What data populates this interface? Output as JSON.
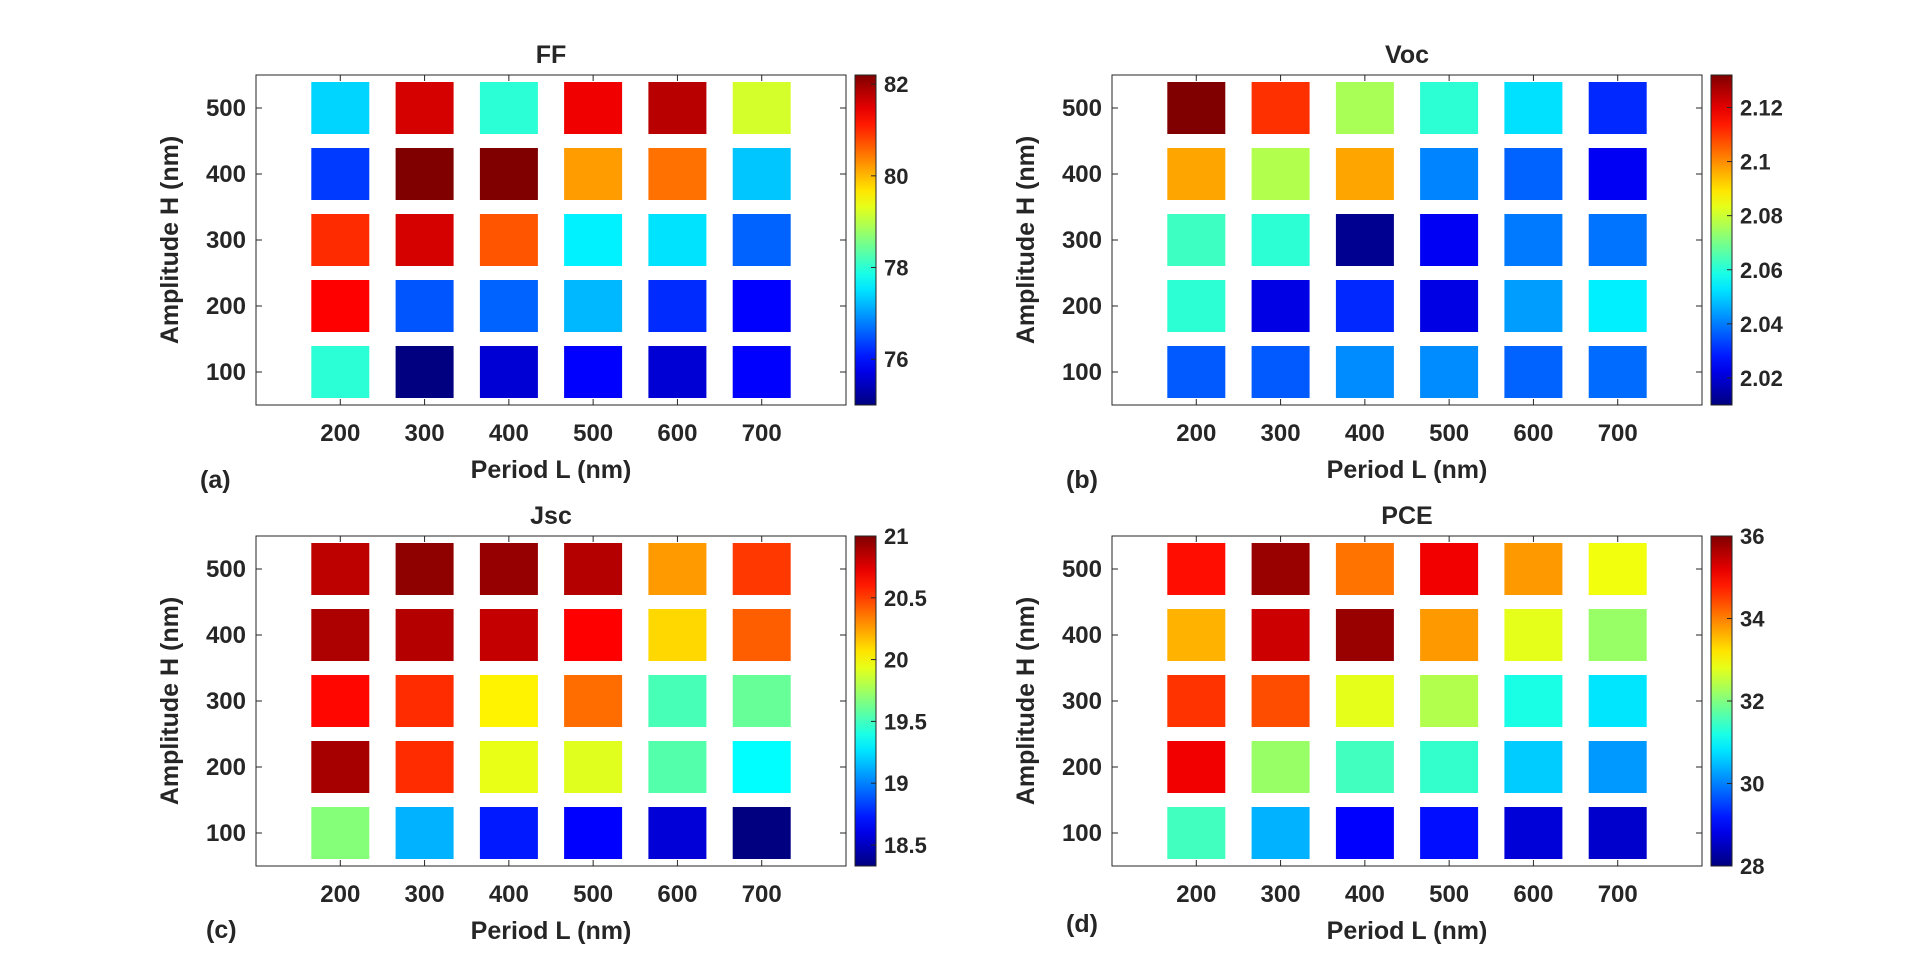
{
  "figure": {
    "background": "#ffffff"
  },
  "chart_data": [
    {
      "type": "heatmap",
      "panel_label": "(a)",
      "title": "FF",
      "xlabel": "Period L (nm)",
      "ylabel": "Amplitude H (nm)",
      "x": [
        200,
        300,
        400,
        500,
        600,
        700
      ],
      "y": [
        100,
        200,
        300,
        400,
        500
      ],
      "xlim": [
        100,
        800
      ],
      "ylim": [
        50,
        550
      ],
      "yticks": [
        100,
        200,
        300,
        400,
        500
      ],
      "clim": [
        75,
        82.2
      ],
      "colorbar_ticks": [
        76,
        78,
        80,
        82
      ],
      "values": [
        [
          78.0,
          75.0,
          75.6,
          75.9,
          75.6,
          75.9
        ],
        [
          81.3,
          76.5,
          76.6,
          77.2,
          76.2,
          75.9
        ],
        [
          81.0,
          81.6,
          80.7,
          77.6,
          77.5,
          76.6
        ],
        [
          76.3,
          82.2,
          82.2,
          80.2,
          80.5,
          77.3
        ],
        [
          77.4,
          81.6,
          78.0,
          81.4,
          81.8,
          79.2
        ]
      ]
    },
    {
      "type": "heatmap",
      "panel_label": "(b)",
      "title": "Voc",
      "xlabel": "Period L (nm)",
      "ylabel": "Amplitude H (nm)",
      "x": [
        200,
        300,
        400,
        500,
        600,
        700
      ],
      "y": [
        100,
        200,
        300,
        400,
        500
      ],
      "xlim": [
        100,
        800
      ],
      "ylim": [
        50,
        550
      ],
      "yticks": [
        100,
        200,
        300,
        400,
        500
      ],
      "clim": [
        2.01,
        2.132
      ],
      "colorbar_ticks": [
        2.02,
        2.04,
        2.06,
        2.08,
        2.1,
        2.12
      ],
      "values": [
        [
          2.036,
          2.036,
          2.042,
          2.042,
          2.037,
          2.038
        ],
        [
          2.061,
          2.022,
          2.03,
          2.022,
          2.044,
          2.054
        ],
        [
          2.063,
          2.061,
          2.012,
          2.024,
          2.04,
          2.039
        ],
        [
          2.097,
          2.077,
          2.097,
          2.041,
          2.037,
          2.024
        ],
        [
          2.132,
          2.111,
          2.076,
          2.061,
          2.052,
          2.03
        ]
      ]
    },
    {
      "type": "heatmap",
      "panel_label": "(c)",
      "title": "Jsc",
      "xlabel": "Period L (nm)",
      "ylabel": "Amplitude H (nm)",
      "x": [
        200,
        300,
        400,
        500,
        600,
        700
      ],
      "y": [
        100,
        200,
        300,
        400,
        500
      ],
      "xlim": [
        100,
        800
      ],
      "ylim": [
        50,
        550
      ],
      "yticks": [
        100,
        200,
        300,
        400,
        500
      ],
      "clim": [
        18.33,
        21.0
      ],
      "colorbar_ticks": [
        18.5,
        19,
        19.5,
        20,
        20.5,
        21
      ],
      "values": [
        [
          19.68,
          19.13,
          18.73,
          18.66,
          18.56,
          18.33
        ],
        [
          20.9,
          20.55,
          19.94,
          19.92,
          19.55,
          19.33
        ],
        [
          20.65,
          20.55,
          20.03,
          20.38,
          19.52,
          19.6
        ],
        [
          20.88,
          20.86,
          20.82,
          20.67,
          20.1,
          20.42
        ],
        [
          20.84,
          20.96,
          20.94,
          20.86,
          20.26,
          20.52
        ]
      ]
    },
    {
      "type": "heatmap",
      "panel_label": "(d)",
      "title": "PCE",
      "xlabel": "Period L (nm)",
      "ylabel": "Amplitude H (nm)",
      "x": [
        200,
        300,
        400,
        500,
        600,
        700
      ],
      "y": [
        100,
        200,
        300,
        400,
        500
      ],
      "xlim": [
        100,
        800
      ],
      "ylim": [
        50,
        550
      ],
      "yticks": [
        100,
        200,
        300,
        400,
        500
      ],
      "clim": [
        28,
        36
      ],
      "colorbar_ticks": [
        28,
        30,
        32,
        34,
        36
      ],
      "values": [
        [
          31.5,
          30.4,
          29.0,
          29.1,
          28.7,
          28.6
        ],
        [
          35.1,
          32.2,
          31.5,
          31.4,
          30.6,
          30.2
        ],
        [
          34.6,
          34.4,
          32.8,
          32.4,
          31.2,
          30.8
        ],
        [
          33.6,
          35.4,
          35.8,
          33.8,
          32.8,
          32.2
        ],
        [
          34.9,
          35.8,
          34.1,
          35.1,
          33.8,
          32.9
        ]
      ]
    }
  ]
}
